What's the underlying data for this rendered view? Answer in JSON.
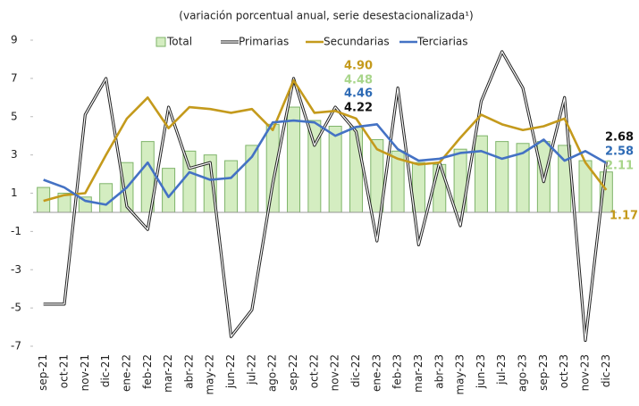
{
  "chart_data": {
    "type": "bar-line",
    "title": "(variación porcentual anual, serie desestacionalizada¹)",
    "categories": [
      "sep-21",
      "oct-21",
      "nov-21",
      "dic-21",
      "ene-22",
      "feb-22",
      "mar-22",
      "abr-22",
      "may-22",
      "jun-22",
      "jul-22",
      "ago-22",
      "sep-22",
      "oct-22",
      "nov-22",
      "dic-22",
      "ene-23",
      "feb-23",
      "mar-23",
      "abr-23",
      "may-23",
      "jun-23",
      "jul-23",
      "ago-23",
      "sep-23",
      "oct-23",
      "nov-23",
      "dic-23"
    ],
    "ylim": [
      -7,
      9
    ],
    "yticks": [
      9,
      7,
      5,
      3,
      1,
      -1,
      -3,
      -5,
      -7
    ],
    "grid": false,
    "legend": "top",
    "series": [
      {
        "name": "Total",
        "kind": "bar",
        "color": "#d4edc1",
        "stroke": "#7fb46a",
        "values": [
          1.3,
          1.0,
          0.8,
          1.5,
          2.6,
          3.7,
          2.3,
          3.2,
          3.0,
          2.7,
          3.5,
          4.6,
          5.5,
          4.8,
          4.5,
          4.48,
          3.8,
          3.2,
          2.6,
          2.5,
          3.3,
          4.0,
          3.7,
          3.6,
          3.7,
          3.5,
          2.7,
          2.11
        ]
      },
      {
        "name": "Primarias",
        "kind": "double-line",
        "color": "#222222",
        "values": [
          -4.8,
          -4.8,
          5.1,
          7.0,
          0.3,
          -0.9,
          5.5,
          2.3,
          2.6,
          -6.5,
          -5.1,
          1.5,
          7.0,
          3.5,
          5.5,
          4.22,
          -1.5,
          6.5,
          -1.7,
          2.6,
          -0.7,
          5.8,
          8.4,
          6.5,
          1.6,
          6.0,
          -6.7,
          2.68
        ]
      },
      {
        "name": "Secundarias",
        "kind": "line",
        "color": "#c49a1c",
        "values": [
          0.6,
          0.9,
          1.0,
          3.0,
          4.9,
          6.0,
          4.4,
          5.5,
          5.4,
          5.2,
          5.4,
          4.3,
          6.9,
          5.2,
          5.3,
          4.9,
          3.3,
          2.8,
          2.5,
          2.6,
          3.9,
          5.1,
          4.6,
          4.3,
          4.5,
          4.9,
          2.6,
          1.17
        ]
      },
      {
        "name": "Terciarias",
        "kind": "line",
        "color": "#4472c4",
        "values": [
          1.7,
          1.3,
          0.6,
          0.4,
          1.3,
          2.6,
          0.8,
          2.1,
          1.7,
          1.8,
          2.9,
          4.7,
          4.8,
          4.7,
          4.0,
          4.46,
          4.6,
          3.3,
          2.7,
          2.8,
          3.1,
          3.2,
          2.8,
          3.1,
          3.8,
          2.7,
          3.2,
          2.58
        ]
      }
    ],
    "annotations": [
      {
        "text": "4.90",
        "color": "#c49a1c"
      },
      {
        "text": "4.48",
        "color": "#a8d58a"
      },
      {
        "text": "4.46",
        "color": "#2e6bb5"
      },
      {
        "text": "4.22",
        "color": "#111111"
      },
      {
        "text": "2.68",
        "color": "#111111"
      },
      {
        "text": "2.58",
        "color": "#2e6bb5"
      },
      {
        "text": "2.11",
        "color": "#a8d58a"
      },
      {
        "text": "1.17",
        "color": "#c49a1c"
      }
    ]
  }
}
